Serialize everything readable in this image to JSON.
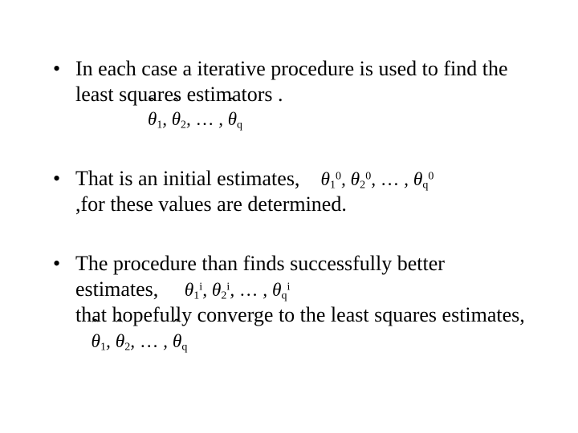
{
  "slide": {
    "background_color": "#ffffff",
    "text_color": "#000000",
    "font_family": "Times New Roman",
    "base_fontsize_pt": 20,
    "bullets": [
      {
        "text_a": "In each case a iterative procedure is used to find the least squares estimators .",
        "math_below": "theta-hat_1, theta-hat_2, …, theta-hat_q"
      },
      {
        "text_a": "That is an initial estimates,",
        "math_inline": "theta_1^0, theta_2^0, …, theta_q^0",
        "text_b": ",for these values are determined."
      },
      {
        "text_a": "The procedure than finds successfully better estimates,",
        "math_inline": "theta_1^i, theta_2^i, …, theta_q^i",
        "text_b": "that hopefully converge to the least squares estimates,",
        "math_inline2": "theta-hat_1, theta-hat_2, …, theta-hat_q"
      }
    ]
  }
}
